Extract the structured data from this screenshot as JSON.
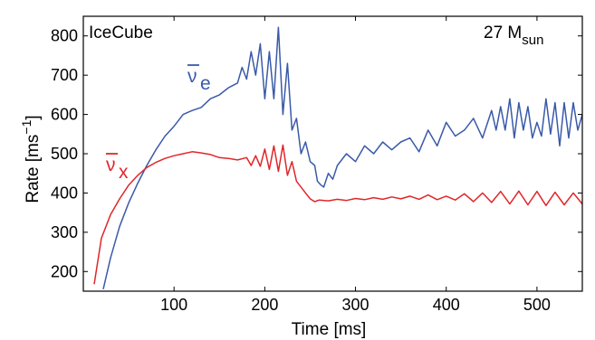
{
  "chart_data": {
    "type": "line",
    "xlabel": "Time [ms]",
    "ylabel": "Rate [ms",
    "ylabel_sup": "−1",
    "ylabel_close": "]",
    "xlim": [
      0,
      550
    ],
    "ylim": [
      150,
      850
    ],
    "xticks": [
      100,
      200,
      300,
      400,
      500
    ],
    "yticks": [
      200,
      300,
      400,
      500,
      600,
      700,
      800
    ],
    "grid": false,
    "legend": "none",
    "annotations": {
      "detector": "IceCube",
      "mass_main": "27 M",
      "mass_sub": "sun"
    },
    "series": [
      {
        "name": "ν̄e",
        "label_main": "ν",
        "label_sub": "e",
        "color": "#3a5aa8",
        "x": [
          22,
          30,
          40,
          50,
          60,
          70,
          80,
          90,
          100,
          110,
          120,
          130,
          140,
          150,
          160,
          170,
          175,
          180,
          185,
          190,
          195,
          200,
          205,
          210,
          215,
          220,
          225,
          230,
          235,
          240,
          245,
          250,
          255,
          258,
          262,
          265,
          270,
          275,
          280,
          290,
          300,
          310,
          320,
          330,
          340,
          350,
          360,
          370,
          380,
          390,
          400,
          410,
          420,
          430,
          440,
          450,
          455,
          460,
          465,
          470,
          475,
          480,
          485,
          490,
          495,
          500,
          505,
          510,
          515,
          520,
          525,
          530,
          535,
          540,
          545,
          550
        ],
        "y": [
          155,
          235,
          315,
          375,
          425,
          470,
          510,
          545,
          570,
          600,
          610,
          618,
          640,
          650,
          668,
          680,
          720,
          690,
          760,
          700,
          780,
          640,
          760,
          640,
          822,
          600,
          730,
          560,
          590,
          500,
          530,
          480,
          470,
          430,
          420,
          415,
          450,
          435,
          470,
          500,
          480,
          520,
          500,
          530,
          510,
          530,
          540,
          505,
          560,
          520,
          580,
          545,
          560,
          590,
          540,
          610,
          560,
          620,
          560,
          640,
          540,
          630,
          560,
          620,
          540,
          580,
          545,
          640,
          550,
          630,
          520,
          630,
          540,
          630,
          560,
          600
        ]
      },
      {
        "name": "ν̄x",
        "label_main": "ν",
        "label_sub": "x",
        "color": "#e0262a",
        "x": [
          12,
          20,
          30,
          40,
          50,
          60,
          70,
          80,
          90,
          100,
          110,
          120,
          130,
          140,
          150,
          160,
          170,
          180,
          185,
          190,
          195,
          200,
          205,
          210,
          215,
          220,
          225,
          230,
          235,
          240,
          245,
          250,
          255,
          260,
          270,
          280,
          290,
          300,
          310,
          320,
          330,
          340,
          350,
          360,
          370,
          380,
          390,
          400,
          410,
          420,
          430,
          440,
          450,
          460,
          470,
          480,
          490,
          500,
          510,
          520,
          530,
          540,
          550
        ],
        "y": [
          168,
          285,
          345,
          385,
          420,
          445,
          465,
          478,
          488,
          495,
          500,
          505,
          502,
          498,
          490,
          488,
          484,
          490,
          470,
          495,
          468,
          512,
          460,
          520,
          455,
          522,
          445,
          480,
          430,
          415,
          400,
          385,
          378,
          382,
          380,
          384,
          381,
          386,
          383,
          388,
          384,
          390,
          385,
          392,
          384,
          395,
          383,
          392,
          382,
          398,
          378,
          400,
          376,
          404,
          372,
          405,
          370,
          404,
          368,
          402,
          370,
          400,
          372
        ]
      }
    ]
  }
}
